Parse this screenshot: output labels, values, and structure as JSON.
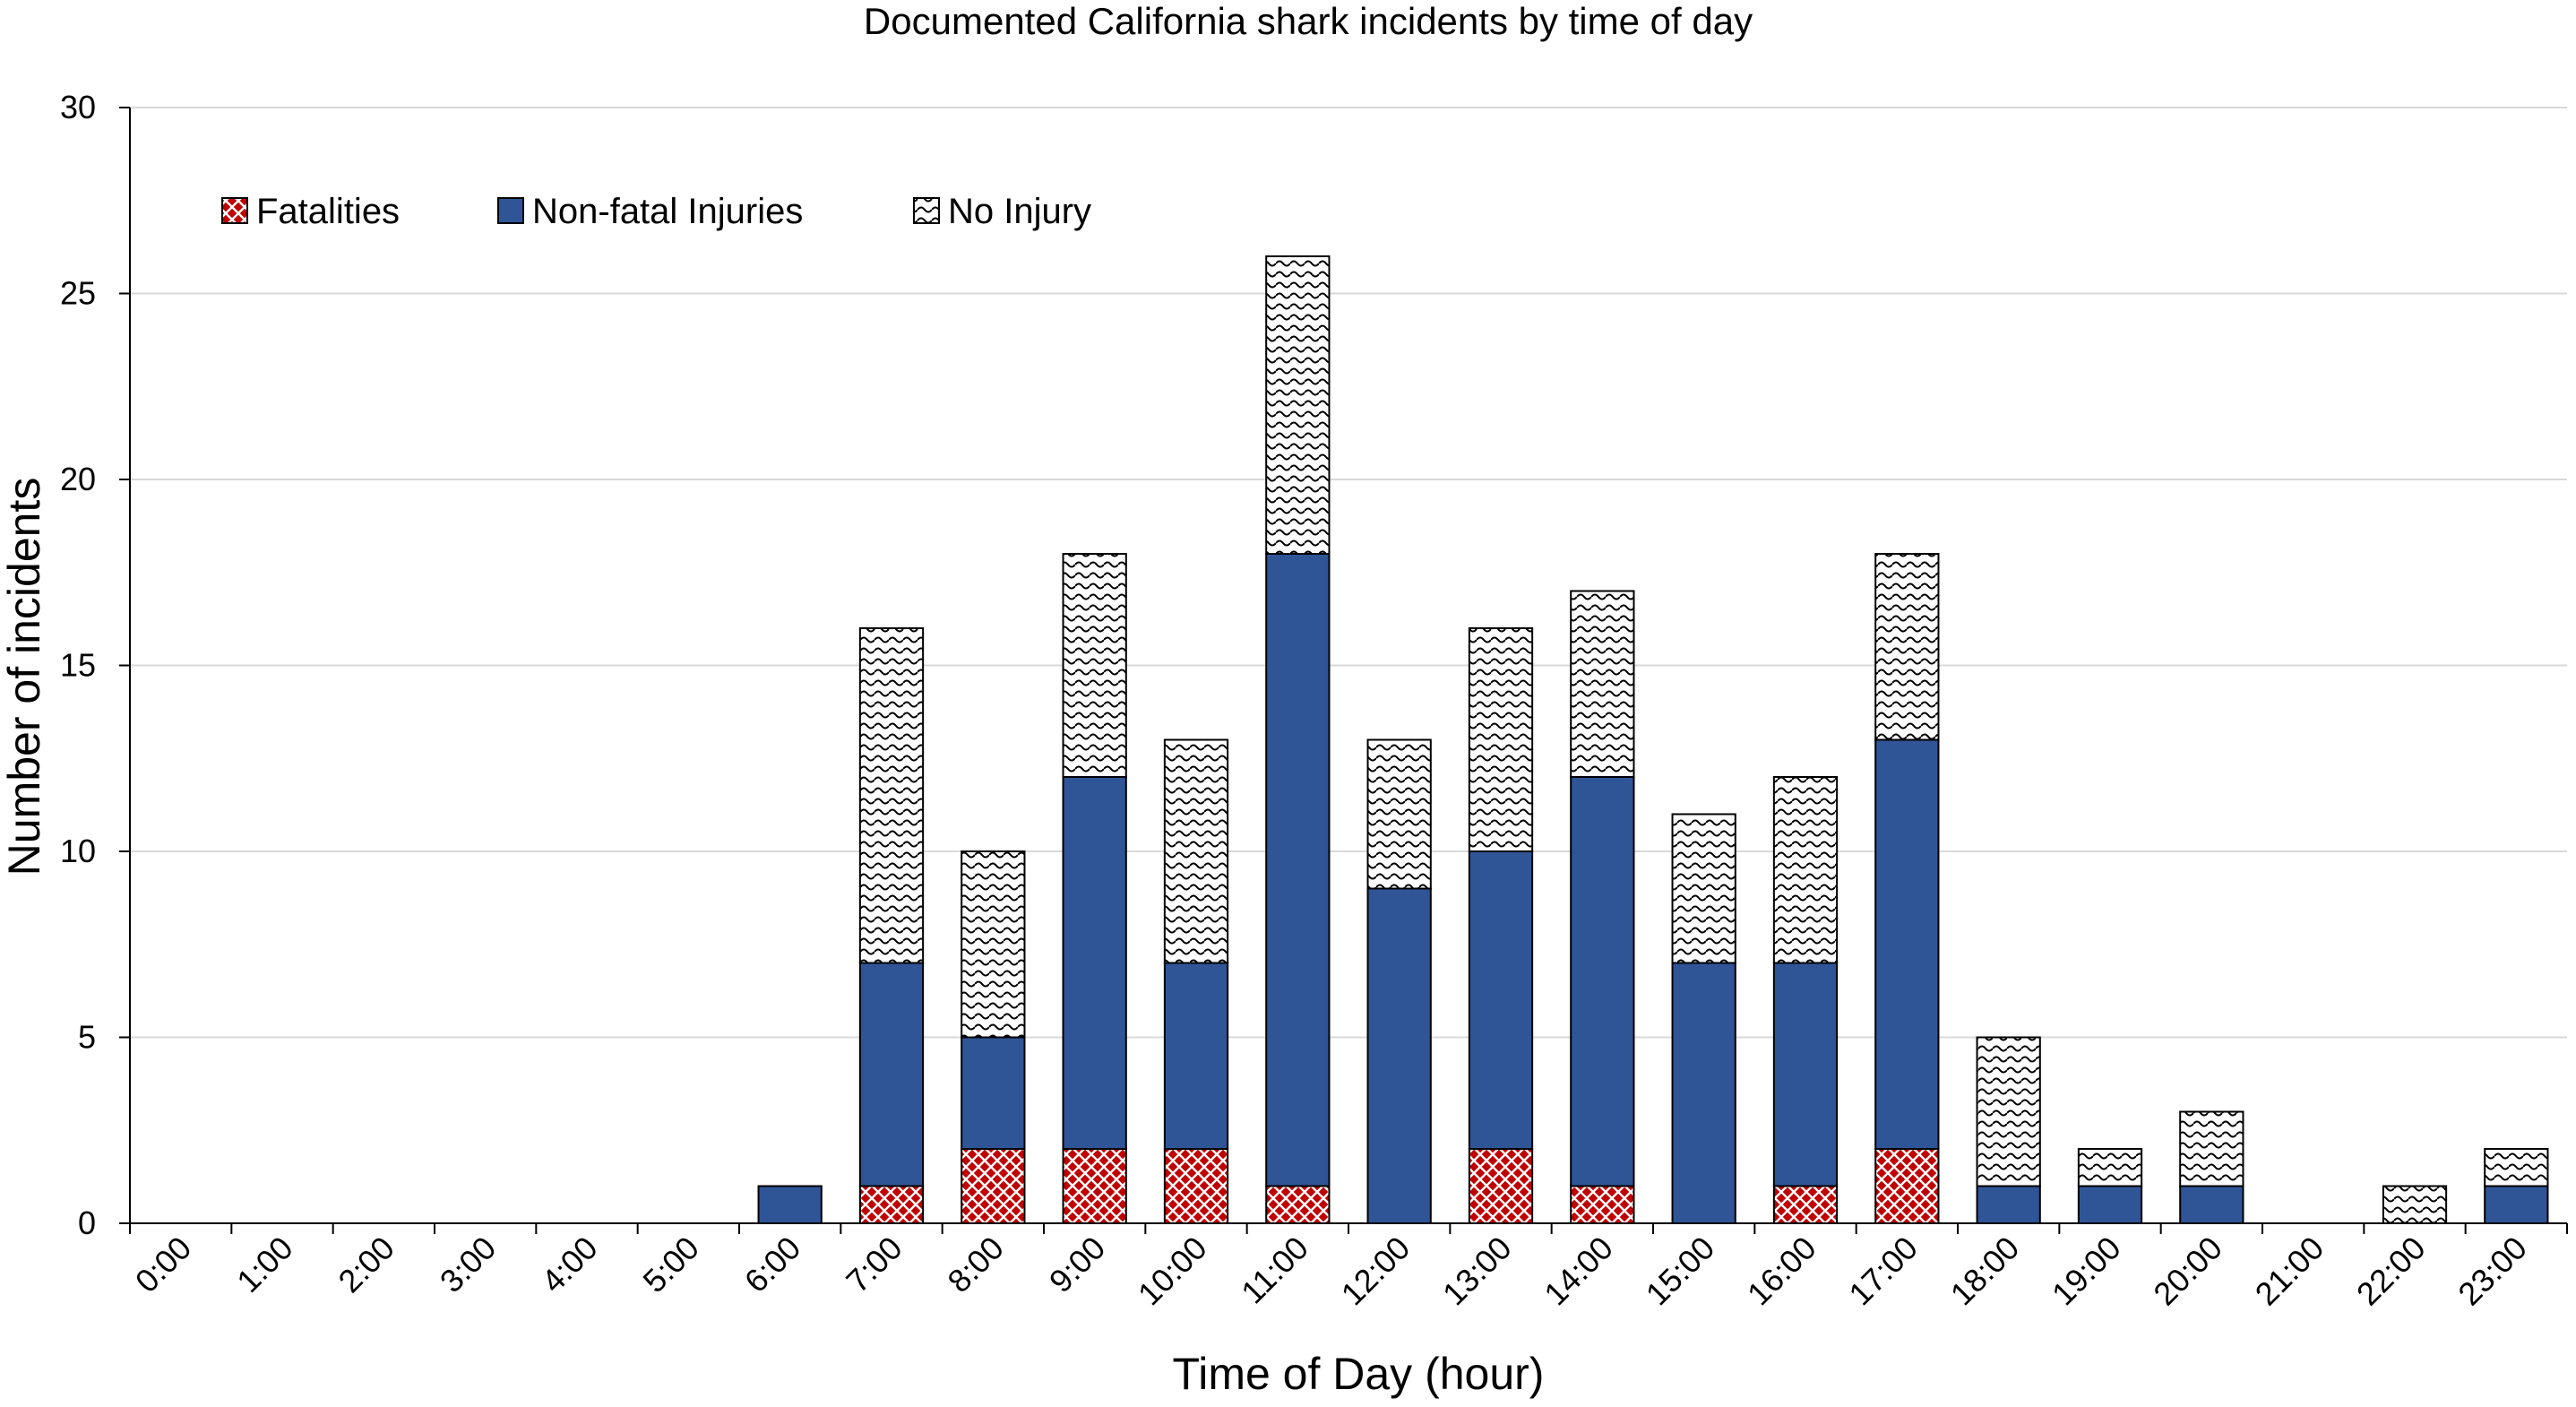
{
  "chart_data": {
    "type": "bar",
    "stacked": true,
    "title": "Documented California shark incidents by time of day",
    "xlabel": "Time of Day (hour)",
    "ylabel": "Number of incidents",
    "ylim": [
      0,
      30
    ],
    "yticks": [
      0,
      5,
      10,
      15,
      20,
      25,
      30
    ],
    "grid": true,
    "legend_position": "top-left",
    "categories": [
      "0:00",
      "1:00",
      "2:00",
      "3:00",
      "4:00",
      "5:00",
      "6:00",
      "7:00",
      "8:00",
      "9:00",
      "10:00",
      "11:00",
      "12:00",
      "13:00",
      "14:00",
      "15:00",
      "16:00",
      "17:00",
      "18:00",
      "19:00",
      "20:00",
      "21:00",
      "22:00",
      "23:00"
    ],
    "series": [
      {
        "name": "Fatalities",
        "color": "#c00000",
        "pattern": "crosshatch",
        "values": [
          0,
          0,
          0,
          0,
          0,
          0,
          0,
          1,
          2,
          2,
          2,
          1,
          0,
          2,
          1,
          0,
          1,
          2,
          0,
          0,
          0,
          0,
          0,
          0
        ]
      },
      {
        "name": "Non-fatal Injuries",
        "color": "#2f5597",
        "pattern": "solid",
        "values": [
          0,
          0,
          0,
          0,
          0,
          0,
          1,
          6,
          3,
          10,
          5,
          17,
          9,
          8,
          11,
          7,
          6,
          11,
          1,
          1,
          1,
          0,
          0,
          1
        ]
      },
      {
        "name": "No Injury",
        "color": "#ffffff",
        "pattern": "wave",
        "values": [
          0,
          0,
          0,
          0,
          0,
          0,
          0,
          9,
          5,
          6,
          6,
          8,
          4,
          6,
          5,
          4,
          5,
          5,
          4,
          1,
          2,
          0,
          1,
          1
        ]
      }
    ]
  }
}
